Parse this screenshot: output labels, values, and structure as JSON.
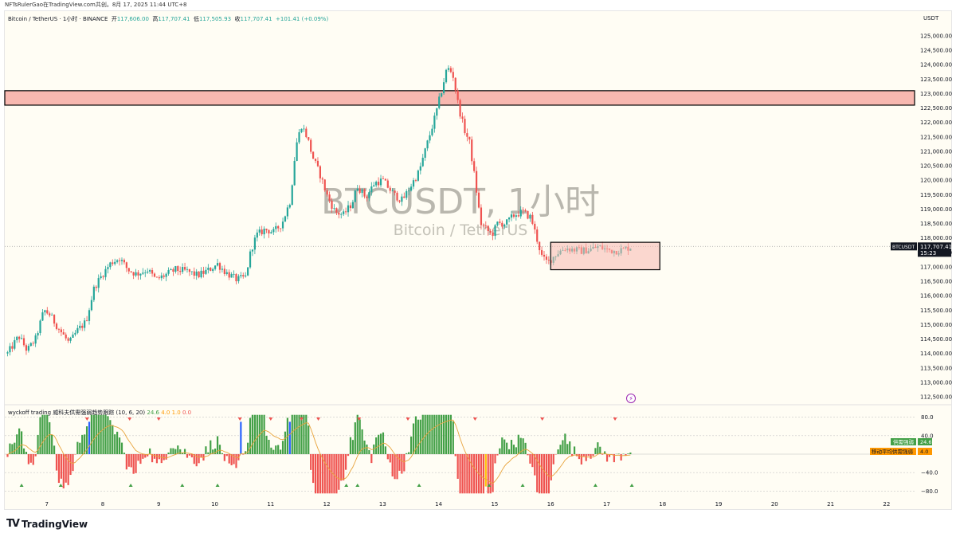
{
  "top_caption": "NFTsRulerGao在TradingView.com共创。8月 17, 2025 11:44 UTC+8",
  "header": {
    "symbol": "Bitcoin / TetherUS · 1小时 · BINANCE",
    "open_label": "开",
    "open": "117,606.00",
    "high_label": "高",
    "high": "117,707.41",
    "low_label": "低",
    "low": "117,505.93",
    "close_label": "收",
    "close": "117,707.41",
    "change": "+101.41 (+0.09%)"
  },
  "currency": "USDT",
  "watermark": {
    "line1": "BTCUSDT, 1小时",
    "line2": "Bitcoin / TetherUS"
  },
  "price_badge": {
    "symbol": "BTCUSDT",
    "price": "117,707.41",
    "countdown": "15:23"
  },
  "indicator": {
    "name": "wyckoff trading 威科夫供需强弱趋势跟踪 (10, 6, 20)",
    "v1": "24.6",
    "v2": "4.0",
    "v3": "1.0",
    "v4": "0.0",
    "axis_labels": [
      "80.0",
      "40.0",
      "−40.0",
      "−80.0"
    ],
    "badge1_label": "供需强弱",
    "badge1_value": "24.6",
    "badge2_label": "移动平均供需强弱",
    "badge2_value": "4.0"
  },
  "branding": "TradingView",
  "colors": {
    "up": "#26a69a",
    "down": "#ef5350",
    "zone": "#f8b8b0",
    "ma": "#e8a33c"
  },
  "chart_data": [
    {
      "type": "candlestick",
      "symbol": "BTCUSDT",
      "interval": "1h",
      "y_ticks": [
        125000,
        124500,
        124000,
        123500,
        123000,
        122500,
        122000,
        121500,
        121000,
        120500,
        120000,
        119500,
        119000,
        118500,
        118000,
        117500,
        117000,
        116500,
        116000,
        115500,
        115000,
        114500,
        114000,
        113500,
        113000,
        112500
      ],
      "y_tick_labels": [
        "125,000.00",
        "124,500.00",
        "124,000.00",
        "123,500.00",
        "123,000.00",
        "122,500.00",
        "122,000.00",
        "121,500.00",
        "121,000.00",
        "120,500.00",
        "120,000.00",
        "119,500.00",
        "119,000.00",
        "118,500.00",
        "118,000.00",
        "117,500.00",
        "117,000.00",
        "116,500.00",
        "116,000.00",
        "115,500.00",
        "115,000.00",
        "114,500.00",
        "114,000.00",
        "113,500.00",
        "113,000.00",
        "112,500.00"
      ],
      "ylim": [
        112250,
        125400
      ],
      "x_tick_labels": [
        "7",
        "8",
        "9",
        "10",
        "11",
        "12",
        "13",
        "14",
        "15",
        "16",
        "17",
        "18",
        "19",
        "20",
        "21",
        "22"
      ],
      "x_range": [
        6.25,
        22.5
      ],
      "close_path": [
        [
          6.3,
          114000
        ],
        [
          6.5,
          114600
        ],
        [
          6.65,
          114100
        ],
        [
          6.8,
          114500
        ],
        [
          6.95,
          115500
        ],
        [
          7.05,
          115350
        ],
        [
          7.2,
          114900
        ],
        [
          7.4,
          114350
        ],
        [
          7.55,
          114800
        ],
        [
          7.7,
          115100
        ],
        [
          7.85,
          116300
        ],
        [
          8.0,
          116750
        ],
        [
          8.15,
          117150
        ],
        [
          8.3,
          117300
        ],
        [
          8.45,
          116900
        ],
        [
          8.6,
          116750
        ],
        [
          8.8,
          116900
        ],
        [
          8.95,
          116550
        ],
        [
          9.1,
          116700
        ],
        [
          9.3,
          116900
        ],
        [
          9.5,
          116850
        ],
        [
          9.7,
          116700
        ],
        [
          9.9,
          116900
        ],
        [
          10.05,
          117100
        ],
        [
          10.2,
          116800
        ],
        [
          10.4,
          116550
        ],
        [
          10.55,
          116650
        ],
        [
          10.65,
          117600
        ],
        [
          10.75,
          118100
        ],
        [
          10.9,
          118300
        ],
        [
          11.05,
          118200
        ],
        [
          11.2,
          118500
        ],
        [
          11.35,
          119300
        ],
        [
          11.45,
          121200
        ],
        [
          11.55,
          121900
        ],
        [
          11.65,
          121500
        ],
        [
          11.75,
          120800
        ],
        [
          11.9,
          120100
        ],
        [
          12.0,
          119500
        ],
        [
          12.15,
          118900
        ],
        [
          12.3,
          118800
        ],
        [
          12.45,
          119200
        ],
        [
          12.55,
          119800
        ],
        [
          12.7,
          119400
        ],
        [
          12.85,
          119900
        ],
        [
          13.0,
          120000
        ],
        [
          13.2,
          119500
        ],
        [
          13.35,
          119300
        ],
        [
          13.5,
          119800
        ],
        [
          13.65,
          120300
        ],
        [
          13.8,
          121300
        ],
        [
          13.95,
          122300
        ],
        [
          14.05,
          123100
        ],
        [
          14.15,
          123900
        ],
        [
          14.25,
          123700
        ],
        [
          14.35,
          122600
        ],
        [
          14.45,
          121800
        ],
        [
          14.55,
          121300
        ],
        [
          14.65,
          120000
        ],
        [
          14.75,
          118500
        ],
        [
          14.85,
          118300
        ],
        [
          14.95,
          118100
        ],
        [
          15.05,
          118500
        ],
        [
          15.2,
          118500
        ],
        [
          15.35,
          118800
        ],
        [
          15.5,
          118900
        ],
        [
          15.65,
          118700
        ],
        [
          15.75,
          118000
        ],
        [
          15.85,
          117300
        ],
        [
          15.95,
          117150
        ],
        [
          16.1,
          117450
        ],
        [
          16.25,
          117650
        ],
        [
          16.4,
          117600
        ],
        [
          16.55,
          117550
        ],
        [
          16.7,
          117600
        ],
        [
          16.85,
          117700
        ],
        [
          17.0,
          117600
        ],
        [
          17.15,
          117550
        ],
        [
          17.3,
          117600
        ],
        [
          17.45,
          117707
        ]
      ],
      "horizontal_zones": [
        {
          "y_from": 122600,
          "y_to": 123100,
          "x_from": 6.25,
          "x_to": 22.5
        }
      ],
      "range_boxes": [
        {
          "y_from": 116900,
          "y_to": 117850,
          "x_from": 16.0,
          "x_to": 17.95
        }
      ],
      "last_price": 117707.41
    },
    {
      "type": "bar",
      "name": "wyckoff trading 威科夫供需强弱趋势跟踪",
      "ylim": [
        -90,
        90
      ],
      "y_ticks": [
        80,
        40,
        -40,
        -80
      ],
      "x_range": [
        6.25,
        22.5
      ],
      "x_end": 17.45,
      "blue_spikes": [
        7.75,
        10.45,
        11.35
      ],
      "yellow_spike": 14.85,
      "top_markers": [
        7.72,
        8.48,
        9.0,
        10.45,
        11.0,
        11.55,
        11.85,
        12.58,
        13.45,
        14.65,
        15.85,
        17.15
      ],
      "bottom_markers": [
        6.55,
        7.25,
        8.5,
        9.42,
        10.05,
        12.35,
        12.55,
        13.65,
        14.9,
        15.5,
        16.8,
        17.45
      ],
      "last_value": 24.6,
      "last_ma": 4.0
    }
  ]
}
